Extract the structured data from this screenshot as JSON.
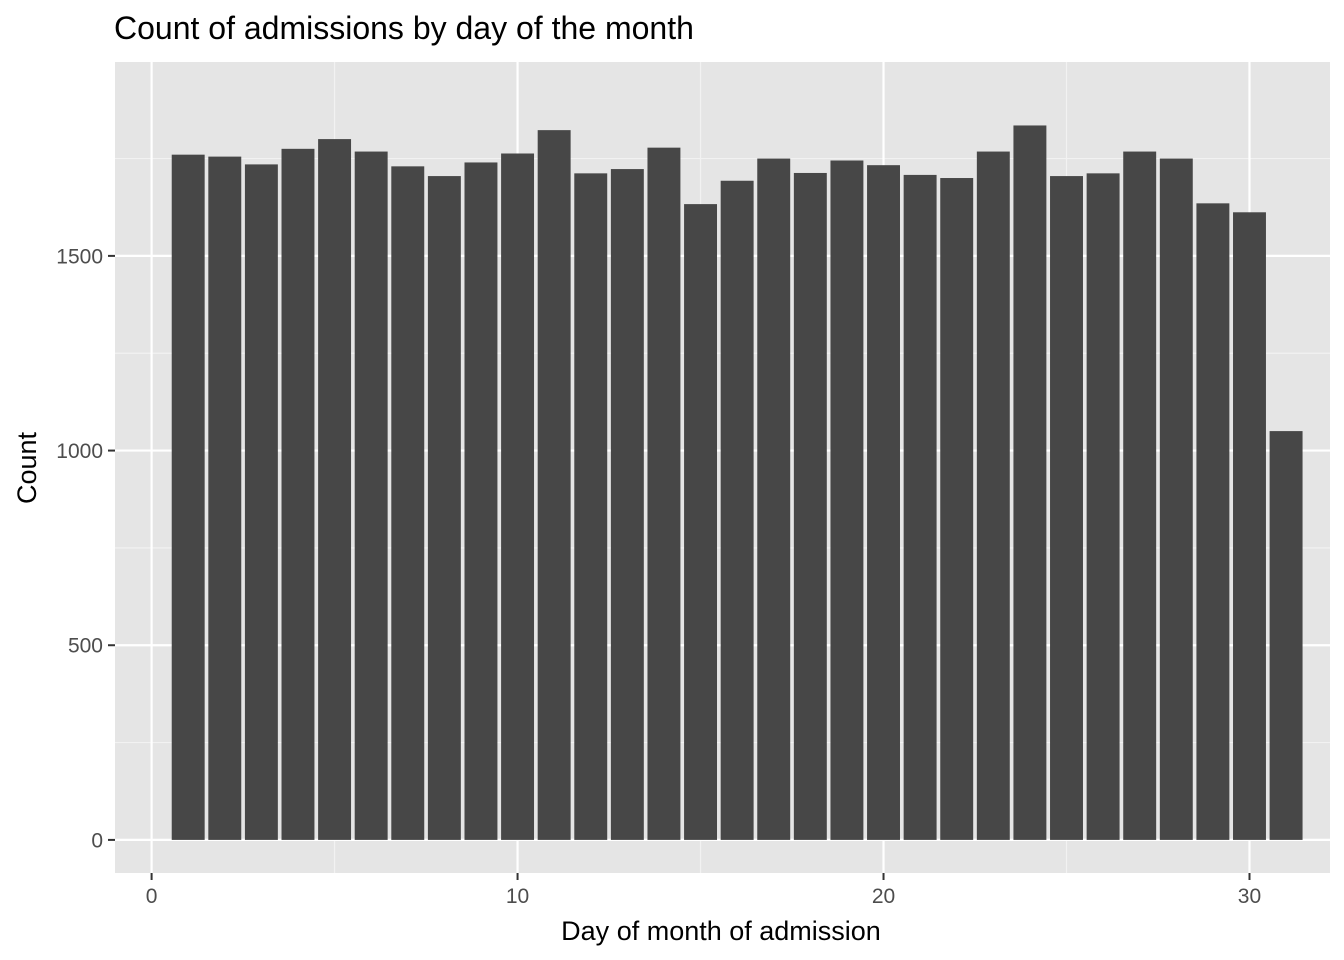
{
  "chart_data": {
    "type": "bar",
    "title": "Count of admissions by day of the month",
    "xlabel": "Day of month of admission",
    "ylabel": "Count",
    "x": [
      1,
      2,
      3,
      4,
      5,
      6,
      7,
      8,
      9,
      10,
      11,
      12,
      13,
      14,
      15,
      16,
      17,
      18,
      19,
      20,
      21,
      22,
      23,
      24,
      25,
      26,
      27,
      28,
      29,
      30,
      31
    ],
    "values": [
      1760,
      1755,
      1735,
      1775,
      1800,
      1768,
      1730,
      1705,
      1740,
      1763,
      1823,
      1712,
      1723,
      1778,
      1633,
      1693,
      1750,
      1713,
      1745,
      1733,
      1708,
      1700,
      1768,
      1835,
      1705,
      1712,
      1768,
      1750,
      1635,
      1612,
      1050
    ],
    "xlim": [
      -1,
      32.2
    ],
    "ylim": [
      -85,
      1998
    ],
    "x_ticks": [
      0,
      10,
      20,
      30
    ],
    "y_ticks": [
      0,
      500,
      1000,
      1500
    ],
    "x_tick_labels": [
      "0",
      "10",
      "20",
      "30"
    ],
    "y_tick_labels": [
      "0",
      "500",
      "1000",
      "1500"
    ],
    "grid": true,
    "legend": "none",
    "colors": {
      "panel_background": "#e5e5e5",
      "grid_major": "#ffffff",
      "grid_minor": "#f2f2f2",
      "bar_fill": "#474747",
      "tick_mark": "#333333",
      "tick_label": "#4d4d4d"
    }
  }
}
